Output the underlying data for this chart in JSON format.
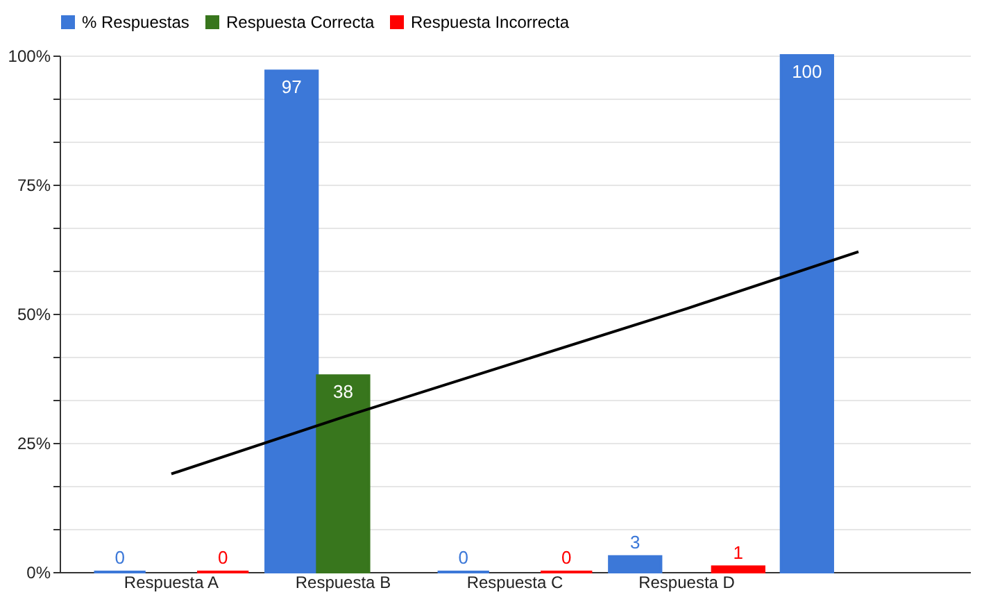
{
  "chart_data": {
    "type": "bar",
    "categories": [
      "Respuesta A",
      "Respuesta B",
      "Respuesta C",
      "Respuesta D",
      null
    ],
    "series": [
      {
        "name": "% Respuestas",
        "color": "#3c78d8",
        "values": [
          0,
          97,
          0,
          3,
          100
        ],
        "value_labels": [
          "0",
          "97",
          "0",
          "3",
          "100"
        ]
      },
      {
        "name": "Respuesta Correcta",
        "color": "#38761d",
        "values": [
          null,
          38,
          null,
          null,
          null
        ],
        "value_labels": [
          null,
          "38",
          null,
          null,
          null
        ]
      },
      {
        "name": "Respuesta Incorrecta",
        "color": "#ff0000",
        "values": [
          0,
          null,
          0,
          1,
          null
        ],
        "value_labels": [
          "0",
          null,
          "0",
          "1",
          null
        ]
      },
      {
        "type": "line",
        "color": "#000000",
        "values": [
          19,
          30,
          40.5,
          51,
          62
        ]
      }
    ],
    "ylim": [
      0,
      100
    ],
    "yticks": [
      {
        "value": 0,
        "label": "0%"
      },
      {
        "value": 8.33,
        "label": null
      },
      {
        "value": 16.67,
        "label": null
      },
      {
        "value": 25,
        "label": "25%"
      },
      {
        "value": 33.33,
        "label": null
      },
      {
        "value": 41.67,
        "label": null
      },
      {
        "value": 50,
        "label": "50%"
      },
      {
        "value": 58.33,
        "label": null
      },
      {
        "value": 66.67,
        "label": null
      },
      {
        "value": 75,
        "label": "75%"
      },
      {
        "value": 83.33,
        "label": null
      },
      {
        "value": 91.67,
        "label": null
      },
      {
        "value": 100,
        "label": "100%"
      }
    ],
    "grid": "y",
    "legend": "top"
  }
}
